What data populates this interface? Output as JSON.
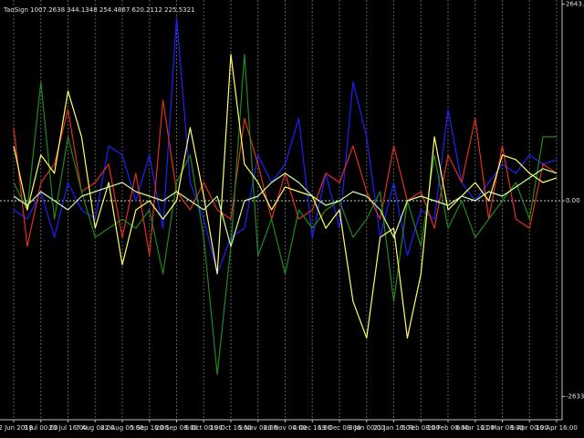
{
  "chart_data": {
    "type": "line",
    "indicator_label": "TaoSign 1007.2638 344.1348 254.4867 620.2112 225.5321",
    "xlim": [
      0,
      100
    ],
    "xticks": [
      {
        "value": 0,
        "label": "22 Jun 2018"
      },
      {
        "value": 5,
        "label": "9 Jul 00:00"
      },
      {
        "value": 10,
        "label": "23 Jul 16:00"
      },
      {
        "value": 15,
        "label": "7 Aug 08:00"
      },
      {
        "value": 20,
        "label": "22 Aug 00:00"
      },
      {
        "value": 25,
        "label": "5 Sep 16:00"
      },
      {
        "value": 30,
        "label": "20 Sep 08:00"
      },
      {
        "value": 35,
        "label": "5 Oct 00:00"
      },
      {
        "value": 40,
        "label": "19 Oct 16:00"
      },
      {
        "value": 45,
        "label": "5 Nov 08:00"
      },
      {
        "value": 50,
        "label": "20 Nov 00:00"
      },
      {
        "value": 55,
        "label": "4 Dec 16:00"
      },
      {
        "value": 60,
        "label": "19 Dec 08:00"
      },
      {
        "value": 65,
        "label": "3 Jan 00:00"
      },
      {
        "value": 70,
        "label": "21 Jan 16:00"
      },
      {
        "value": 75,
        "label": "5 Feb 08:00"
      },
      {
        "value": 80,
        "label": "20 Feb 00:00"
      },
      {
        "value": 85,
        "label": "6 Mar 16:00"
      },
      {
        "value": 90,
        "label": "21 Mar 08:00"
      },
      {
        "value": 95,
        "label": "5 Apr 00:00"
      },
      {
        "value": 100,
        "label": "19 Apr 16:00"
      }
    ],
    "ylim": [
      -2945,
      2700
    ],
    "yticks": [
      {
        "value": 2643.9,
        "label": "2643.9000"
      },
      {
        "value": 0,
        "label": "0.00"
      },
      {
        "value": -2633.632,
        "label": "-2633.6320"
      }
    ],
    "grid": true,
    "x": [
      0,
      2.5,
      5,
      7.5,
      10,
      12.5,
      15,
      17.5,
      20,
      22.5,
      25,
      27.5,
      30,
      32.5,
      35,
      37.5,
      40,
      42.5,
      45,
      47.5,
      50,
      52.5,
      55,
      57.5,
      60,
      62.5,
      65,
      67.5,
      70,
      72.5,
      75,
      77.5,
      80,
      82.5,
      85,
      87.5,
      90,
      92.5,
      95,
      97.5,
      100
    ],
    "series": [
      {
        "color": "#1f1fff",
        "values": [
          -123,
          -246,
          123,
          -492,
          246,
          -123,
          -246,
          738,
          615,
          0,
          615,
          -369,
          2460,
          246,
          -246,
          -984,
          -492,
          -369,
          615,
          246,
          492,
          1107,
          -492,
          369,
          -369,
          1599,
          861,
          -492,
          246,
          -738,
          -123,
          -246,
          1230,
          246,
          0,
          246,
          492,
          369,
          615,
          492,
          554
        ]
      },
      {
        "color": "#e03020",
        "values": [
          984,
          -615,
          246,
          492,
          1230,
          123,
          246,
          492,
          -492,
          369,
          -738,
          1353,
          123,
          -123,
          246,
          -123,
          -246,
          1107,
          492,
          -246,
          369,
          -246,
          -123,
          369,
          246,
          738,
          123,
          -246,
          738,
          0,
          123,
          -369,
          615,
          246,
          1107,
          -246,
          738,
          -246,
          -369,
          492,
          369
        ]
      },
      {
        "color": "#1e8a1e",
        "values": [
          246,
          -123,
          1599,
          -246,
          861,
          123,
          -492,
          -369,
          -246,
          -369,
          -123,
          -984,
          246,
          615,
          -492,
          -2337,
          -615,
          1968,
          -738,
          -246,
          -984,
          -123,
          -369,
          -123,
          0,
          -492,
          -246,
          123,
          -1353,
          0,
          -615,
          615,
          -369,
          0,
          -492,
          -246,
          0,
          246,
          -246,
          861,
          861
        ]
      },
      {
        "color": "#ffff66",
        "values": [
          738,
          -123,
          615,
          369,
          1476,
          861,
          -369,
          246,
          -861,
          -123,
          0,
          -246,
          0,
          984,
          61,
          -984,
          1968,
          492,
          246,
          -123,
          185,
          123,
          61,
          -369,
          -123,
          -1353,
          -1845,
          -492,
          -369,
          -1845,
          -984,
          861,
          -123,
          61,
          246,
          0,
          615,
          554,
          369,
          246,
          308
        ]
      },
      {
        "color": "#ccff99",
        "values": [
          61,
          -61,
          123,
          0,
          -123,
          61,
          123,
          185,
          246,
          123,
          61,
          0,
          123,
          0,
          -123,
          61,
          -615,
          0,
          61,
          246,
          369,
          246,
          61,
          -61,
          0,
          123,
          61,
          -123,
          -492,
          0,
          61,
          0,
          -61,
          61,
          0,
          123,
          61,
          185,
          308,
          431,
          369
        ]
      }
    ]
  }
}
